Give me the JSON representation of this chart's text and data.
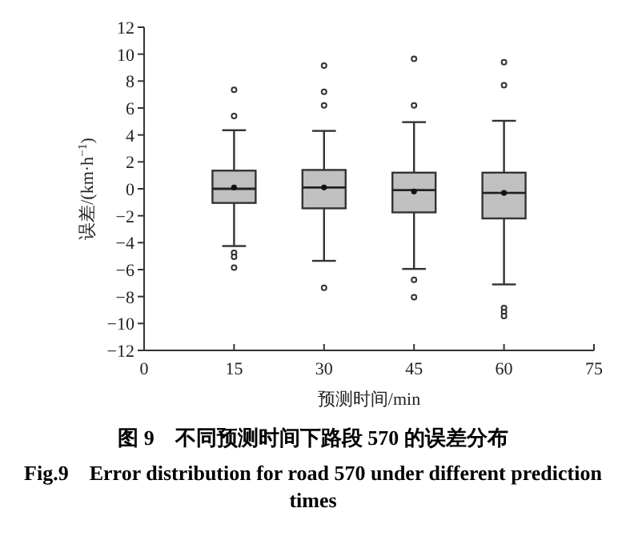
{
  "chart_data": {
    "type": "box",
    "x": [
      15,
      30,
      45,
      60
    ],
    "xlim": [
      0,
      75
    ],
    "xticks": [
      0,
      15,
      30,
      45,
      60,
      75
    ],
    "ylim": [
      -12,
      12
    ],
    "yticks": [
      -12,
      -10,
      -8,
      -6,
      -4,
      -2,
      0,
      2,
      4,
      6,
      8,
      10,
      12
    ],
    "xlabel": "预测时间/min",
    "ylabel": "误差/(km·h$^{−1}$)",
    "grid": false,
    "series": [
      {
        "color": "#c0c0c0",
        "boxes": [
          {
            "low": -4.25,
            "q1": -1.05,
            "median": 0,
            "q3": 1.35,
            "high": 4.35,
            "mean": 0.1,
            "outliers": [
              7.35,
              5.4,
              -4.75,
              -5.05,
              -5.85
            ]
          },
          {
            "low": -5.35,
            "q1": -1.45,
            "median": 0.1,
            "q3": 1.4,
            "high": 4.3,
            "mean": 0.1,
            "outliers": [
              9.15,
              7.2,
              6.2,
              -7.35
            ]
          },
          {
            "low": -5.95,
            "q1": -1.75,
            "median": -0.1,
            "q3": 1.2,
            "high": 4.95,
            "mean": -0.2,
            "outliers": [
              9.65,
              6.2,
              -6.75,
              -8.05
            ]
          },
          {
            "low": -7.1,
            "q1": -2.2,
            "median": -0.3,
            "q3": 1.2,
            "high": 5.05,
            "mean": -0.3,
            "outliers": [
              9.4,
              7.7,
              -8.85,
              -9.15,
              -9.45
            ]
          }
        ]
      }
    ],
    "annotations": [
      "图 9　不同预测时间下路段 570 的误差分布",
      "Fig.9　Error distribution for road 570 under different prediction times"
    ]
  }
}
